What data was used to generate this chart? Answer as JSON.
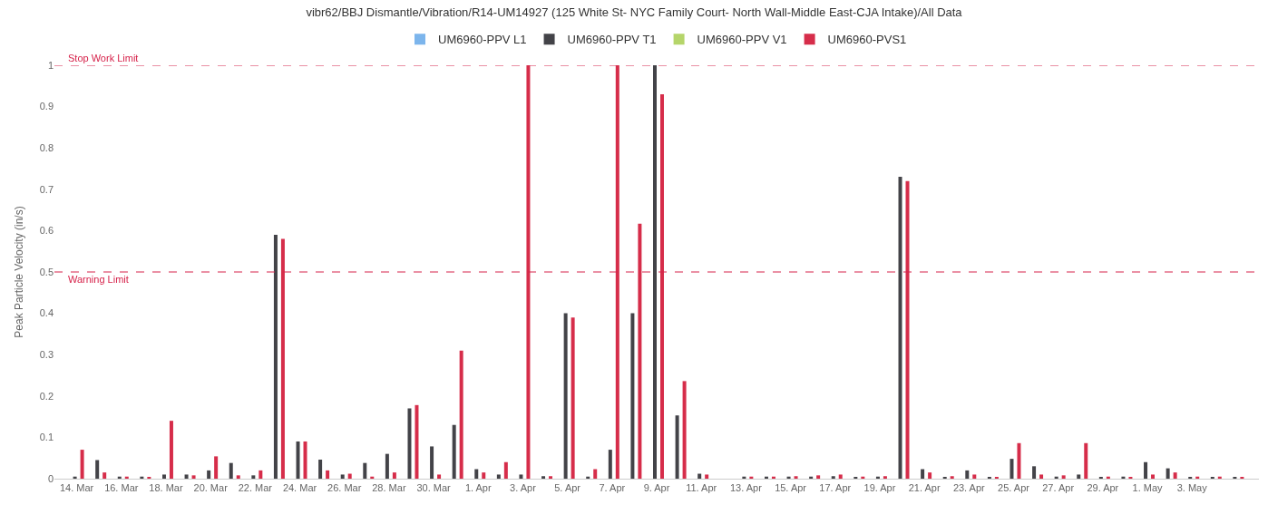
{
  "chart_data": {
    "type": "bar",
    "title": "vibr62/BBJ Dismantle/Vibration/R14-UM14927 (125 White St- NYC Family Court- North Wall-Middle East-CJA Intake)/All Data",
    "ylabel": "Peak Particle Velocity (in/s)",
    "x": [
      "--03-14",
      "--03-15",
      "--03-16",
      "--03-17",
      "--03-18",
      "--03-19",
      "--03-20",
      "--03-21",
      "--03-22",
      "--03-23",
      "--03-24",
      "--03-25",
      "--03-26",
      "--03-27",
      "--03-28",
      "--03-29",
      "--03-30",
      "--03-31",
      "--04-01",
      "--04-02",
      "--04-03",
      "--04-04",
      "--04-05",
      "--04-06",
      "--04-07",
      "--04-08",
      "--04-09",
      "--04-10",
      "--04-11",
      "--04-13",
      "--04-14",
      "--04-15",
      "--04-16",
      "--04-17",
      "--04-18",
      "--04-19",
      "--04-20",
      "--04-21",
      "--04-22",
      "--04-23",
      "--04-24",
      "--04-25",
      "--04-26",
      "--04-27",
      "--04-28",
      "--04-29",
      "--04-30",
      "--05-01",
      "--05-02",
      "--05-03",
      "--05-04",
      "--05-05"
    ],
    "series": [
      {
        "name": "UM6960-PPV L1",
        "color": "#7cb5ec",
        "values": [
          null,
          null,
          null,
          null,
          null,
          null,
          null,
          null,
          null,
          null,
          null,
          null,
          null,
          null,
          null,
          null,
          null,
          null,
          null,
          null,
          null,
          null,
          null,
          null,
          null,
          null,
          null,
          null,
          null,
          null,
          null,
          null,
          null,
          null,
          null,
          null,
          null,
          null,
          null,
          null,
          null,
          null,
          null,
          null,
          null,
          null,
          null,
          null,
          null,
          null,
          null,
          null
        ]
      },
      {
        "name": "UM6960-PPV T1",
        "color": "#434348",
        "values": [
          0.005,
          0.045,
          0.005,
          0.005,
          0.01,
          0.01,
          0.02,
          0.038,
          0.008,
          0.59,
          0.09,
          0.046,
          0.01,
          0.038,
          0.06,
          0.17,
          0.078,
          0.13,
          0.023,
          0.01,
          0.01,
          0.006,
          0.4,
          0.005,
          0.07,
          0.4,
          1.0,
          0.153,
          0.012,
          0.005,
          0.005,
          0.005,
          0.005,
          0.006,
          0.004,
          0.005,
          0.73,
          0.023,
          0.004,
          0.02,
          0.004,
          0.048,
          0.03,
          0.005,
          0.01,
          0.004,
          0.005,
          0.04,
          0.025,
          0.004,
          0.004,
          0.003
        ]
      },
      {
        "name": "UM6960-PPV V1",
        "color": "#b5d56a",
        "values": [
          null,
          null,
          null,
          null,
          null,
          null,
          null,
          null,
          null,
          null,
          null,
          null,
          null,
          null,
          null,
          null,
          null,
          null,
          null,
          null,
          null,
          null,
          null,
          null,
          null,
          null,
          null,
          null,
          null,
          null,
          null,
          null,
          null,
          null,
          null,
          null,
          null,
          null,
          null,
          null,
          null,
          null,
          null,
          null,
          null,
          null,
          null,
          null,
          null,
          null,
          null,
          null
        ]
      },
      {
        "name": "UM6960-PVS1",
        "color": "#d62d4a",
        "values": [
          0.07,
          0.015,
          0.005,
          0.004,
          0.14,
          0.008,
          0.054,
          0.008,
          0.02,
          0.58,
          0.09,
          0.02,
          0.012,
          0.005,
          0.015,
          0.178,
          0.01,
          0.31,
          0.015,
          0.04,
          1.0,
          0.006,
          0.39,
          0.023,
          1.0,
          0.617,
          0.93,
          0.236,
          0.01,
          0.005,
          0.005,
          0.006,
          0.008,
          0.01,
          0.005,
          0.006,
          0.72,
          0.015,
          0.006,
          0.01,
          0.004,
          0.086,
          0.01,
          0.008,
          0.086,
          0.005,
          0.004,
          0.01,
          0.015,
          0.005,
          0.005,
          0.004
        ]
      }
    ],
    "xlim": [
      "--03-13",
      "--05-06"
    ],
    "xticks": [
      {
        "value": "--03-14",
        "label": "14. Mar"
      },
      {
        "value": "--03-16",
        "label": "16. Mar"
      },
      {
        "value": "--03-18",
        "label": "18. Mar"
      },
      {
        "value": "--03-20",
        "label": "20. Mar"
      },
      {
        "value": "--03-22",
        "label": "22. Mar"
      },
      {
        "value": "--03-24",
        "label": "24. Mar"
      },
      {
        "value": "--03-26",
        "label": "26. Mar"
      },
      {
        "value": "--03-28",
        "label": "28. Mar"
      },
      {
        "value": "--03-30",
        "label": "30. Mar"
      },
      {
        "value": "--04-01",
        "label": "1. Apr"
      },
      {
        "value": "--04-03",
        "label": "3. Apr"
      },
      {
        "value": "--04-05",
        "label": "5. Apr"
      },
      {
        "value": "--04-07",
        "label": "7. Apr"
      },
      {
        "value": "--04-09",
        "label": "9. Apr"
      },
      {
        "value": "--04-11",
        "label": "11. Apr"
      },
      {
        "value": "--04-13",
        "label": "13. Apr"
      },
      {
        "value": "--04-15",
        "label": "15. Apr"
      },
      {
        "value": "--04-17",
        "label": "17. Apr"
      },
      {
        "value": "--04-19",
        "label": "19. Apr"
      },
      {
        "value": "--04-21",
        "label": "21. Apr"
      },
      {
        "value": "--04-23",
        "label": "23. Apr"
      },
      {
        "value": "--04-25",
        "label": "25. Apr"
      },
      {
        "value": "--04-27",
        "label": "27. Apr"
      },
      {
        "value": "--04-29",
        "label": "29. Apr"
      },
      {
        "value": "--05-01",
        "label": "1. May"
      },
      {
        "value": "--05-03",
        "label": "3. May"
      }
    ],
    "ylim": [
      0,
      1
    ],
    "yticks": [
      0,
      0.1,
      0.2,
      0.3,
      0.4,
      0.5,
      0.6,
      0.7,
      0.8,
      0.9,
      1
    ],
    "ref_lines": [
      {
        "axis": "y",
        "value": 1.0,
        "label": "Stop Work Limit",
        "color": "#d6224a",
        "line_style": "dashed"
      },
      {
        "axis": "y",
        "value": 0.5,
        "label": "Warning Limit",
        "color": "#d6224a",
        "line_style": "dashed"
      }
    ],
    "legend": "top"
  }
}
